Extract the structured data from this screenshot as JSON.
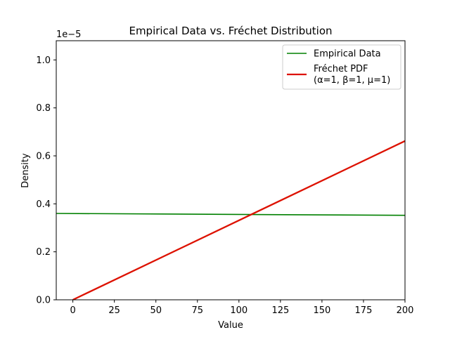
{
  "chart_data": {
    "type": "line",
    "title": "Empirical Data vs. Fréchet Distribution",
    "xlabel": "Value",
    "ylabel": "Density",
    "scale_label": "1e−5",
    "xlim": [
      -10,
      200
    ],
    "ylim": [
      0,
      1.08
    ],
    "xticks": [
      0,
      25,
      50,
      75,
      100,
      125,
      150,
      175,
      200
    ],
    "yticks": [
      "0.0",
      "0.2",
      "0.4",
      "0.6",
      "0.8",
      "1.0"
    ],
    "grid": false,
    "legend_position": "top-right",
    "series": [
      {
        "name": "Empirical Data",
        "color": "#008000",
        "x": [
          -10,
          200
        ],
        "y": [
          0.36,
          0.352
        ]
      },
      {
        "name_lines": [
          "Fréchet PDF",
          "(α=1, β=1, μ=1)"
        ],
        "color": "#dd1100",
        "x": [
          0,
          200
        ],
        "y": [
          0.0,
          0.662
        ]
      }
    ]
  }
}
